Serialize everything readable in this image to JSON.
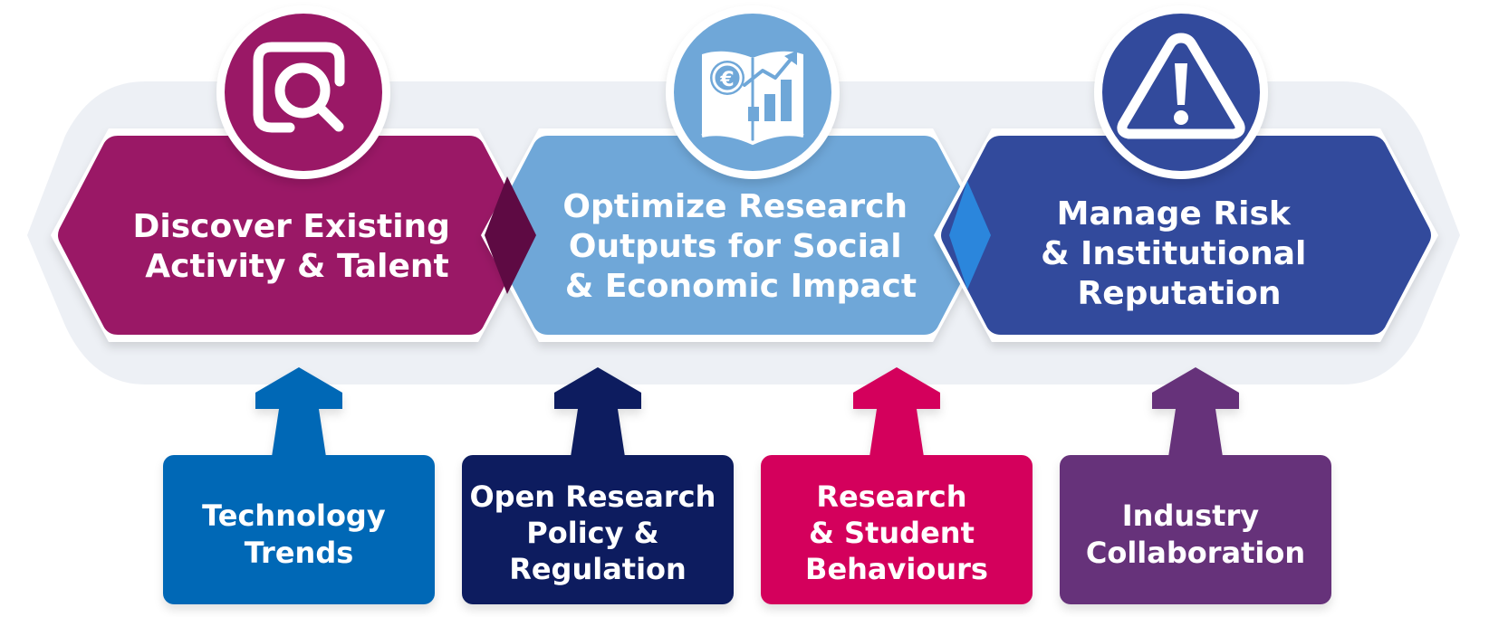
{
  "stages": [
    {
      "lines": [
        "Discover Existing",
        "Activity & Talent"
      ],
      "icon": "magnifier-in-square-icon",
      "color": "#9a1866"
    },
    {
      "lines": [
        "Optimize Research",
        "Outputs for Social",
        "& Economic Impact"
      ],
      "icon": "euro-report-chart-icon",
      "color": "#6fa7d8"
    },
    {
      "lines": [
        "Manage Risk",
        "& Institutional",
        "Reputation"
      ],
      "icon": "warning-triangle-icon",
      "color": "#324a9c"
    }
  ],
  "drivers": [
    {
      "lines": [
        "Technology",
        "Trends"
      ],
      "color": "#0068b6"
    },
    {
      "lines": [
        "Open Research",
        "Policy &",
        "Regulation"
      ],
      "color": "#0b1f5e"
    },
    {
      "lines": [
        "Research",
        "& Student",
        "Behaviours"
      ],
      "color": "#d4005b"
    },
    {
      "lines": [
        "Industry",
        "Collaboration"
      ],
      "color": "#66307a"
    }
  ]
}
